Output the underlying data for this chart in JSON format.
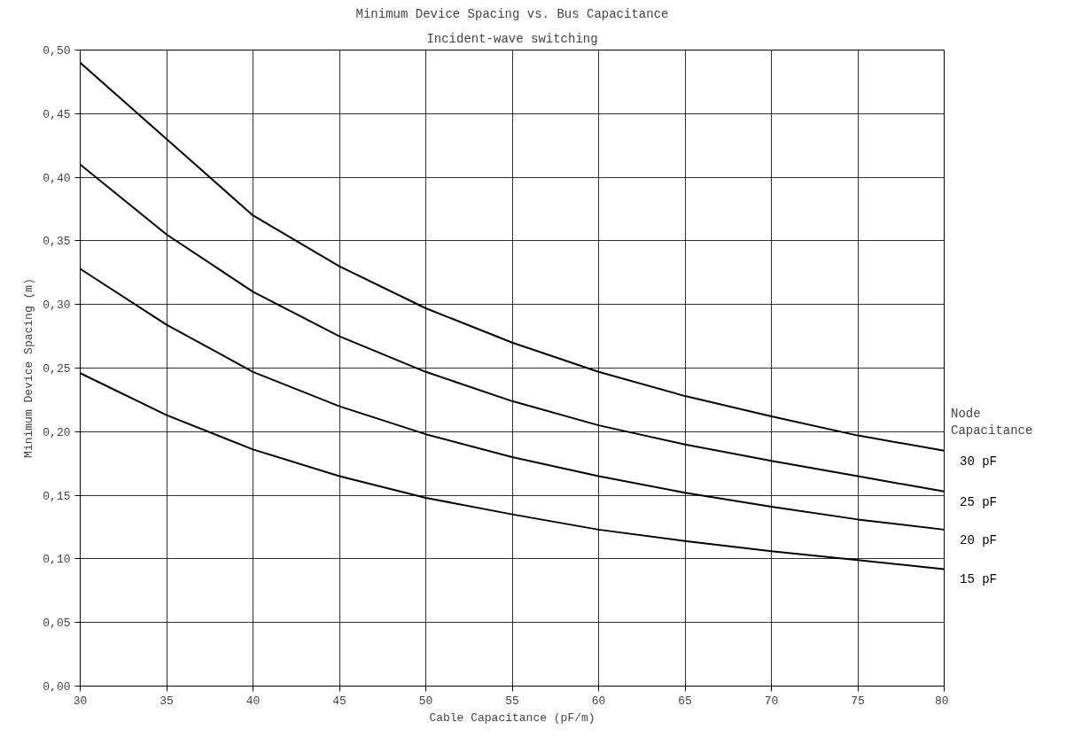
{
  "chart_data": {
    "type": "line",
    "title": "Minimum Device Spacing vs. Bus Capacitance",
    "subtitle": "Incident-wave switching",
    "xlabel": "Cable Capacitance (pF/m)",
    "ylabel": "Minimum Device Spacing (m)",
    "legend_title": "Node Capacitance",
    "x": [
      30,
      35,
      40,
      45,
      50,
      55,
      60,
      65,
      70,
      75,
      80
    ],
    "series": [
      {
        "name": "30 pF",
        "color": "#000000",
        "values": [
          0.49,
          0.43,
          0.37,
          0.33,
          0.297,
          0.27,
          0.247,
          0.228,
          0.212,
          0.197,
          0.185
        ]
      },
      {
        "name": "25 pF",
        "color": "#000000",
        "values": [
          0.41,
          0.355,
          0.31,
          0.275,
          0.247,
          0.224,
          0.205,
          0.19,
          0.177,
          0.165,
          0.153
        ]
      },
      {
        "name": "20 pF",
        "color": "#000000",
        "values": [
          0.328,
          0.284,
          0.247,
          0.22,
          0.198,
          0.18,
          0.165,
          0.152,
          0.141,
          0.131,
          0.123
        ]
      },
      {
        "name": "15 pF",
        "color": "#000000",
        "values": [
          0.246,
          0.213,
          0.186,
          0.165,
          0.148,
          0.135,
          0.123,
          0.114,
          0.106,
          0.099,
          0.092
        ]
      }
    ],
    "xlim": [
      30,
      80
    ],
    "xticks": [
      30,
      35,
      40,
      45,
      50,
      55,
      60,
      65,
      70,
      75,
      80
    ],
    "ylim": [
      0,
      0.5
    ],
    "yticks": [
      {
        "value": 0,
        "label": "0,00"
      },
      {
        "value": 0.05,
        "label": "0,05"
      },
      {
        "value": 0.1,
        "label": "0,10"
      },
      {
        "value": 0.15,
        "label": "0,15"
      },
      {
        "value": 0.2,
        "label": "0,20"
      },
      {
        "value": 0.25,
        "label": "0,25"
      },
      {
        "value": 0.3,
        "label": "0,30"
      },
      {
        "value": 0.35,
        "label": "0,35"
      },
      {
        "value": 0.4,
        "label": "0,40"
      },
      {
        "value": 0.45,
        "label": "0,45"
      },
      {
        "value": 0.5,
        "label": "0,50"
      }
    ],
    "grid": true,
    "line_style": "solid"
  }
}
